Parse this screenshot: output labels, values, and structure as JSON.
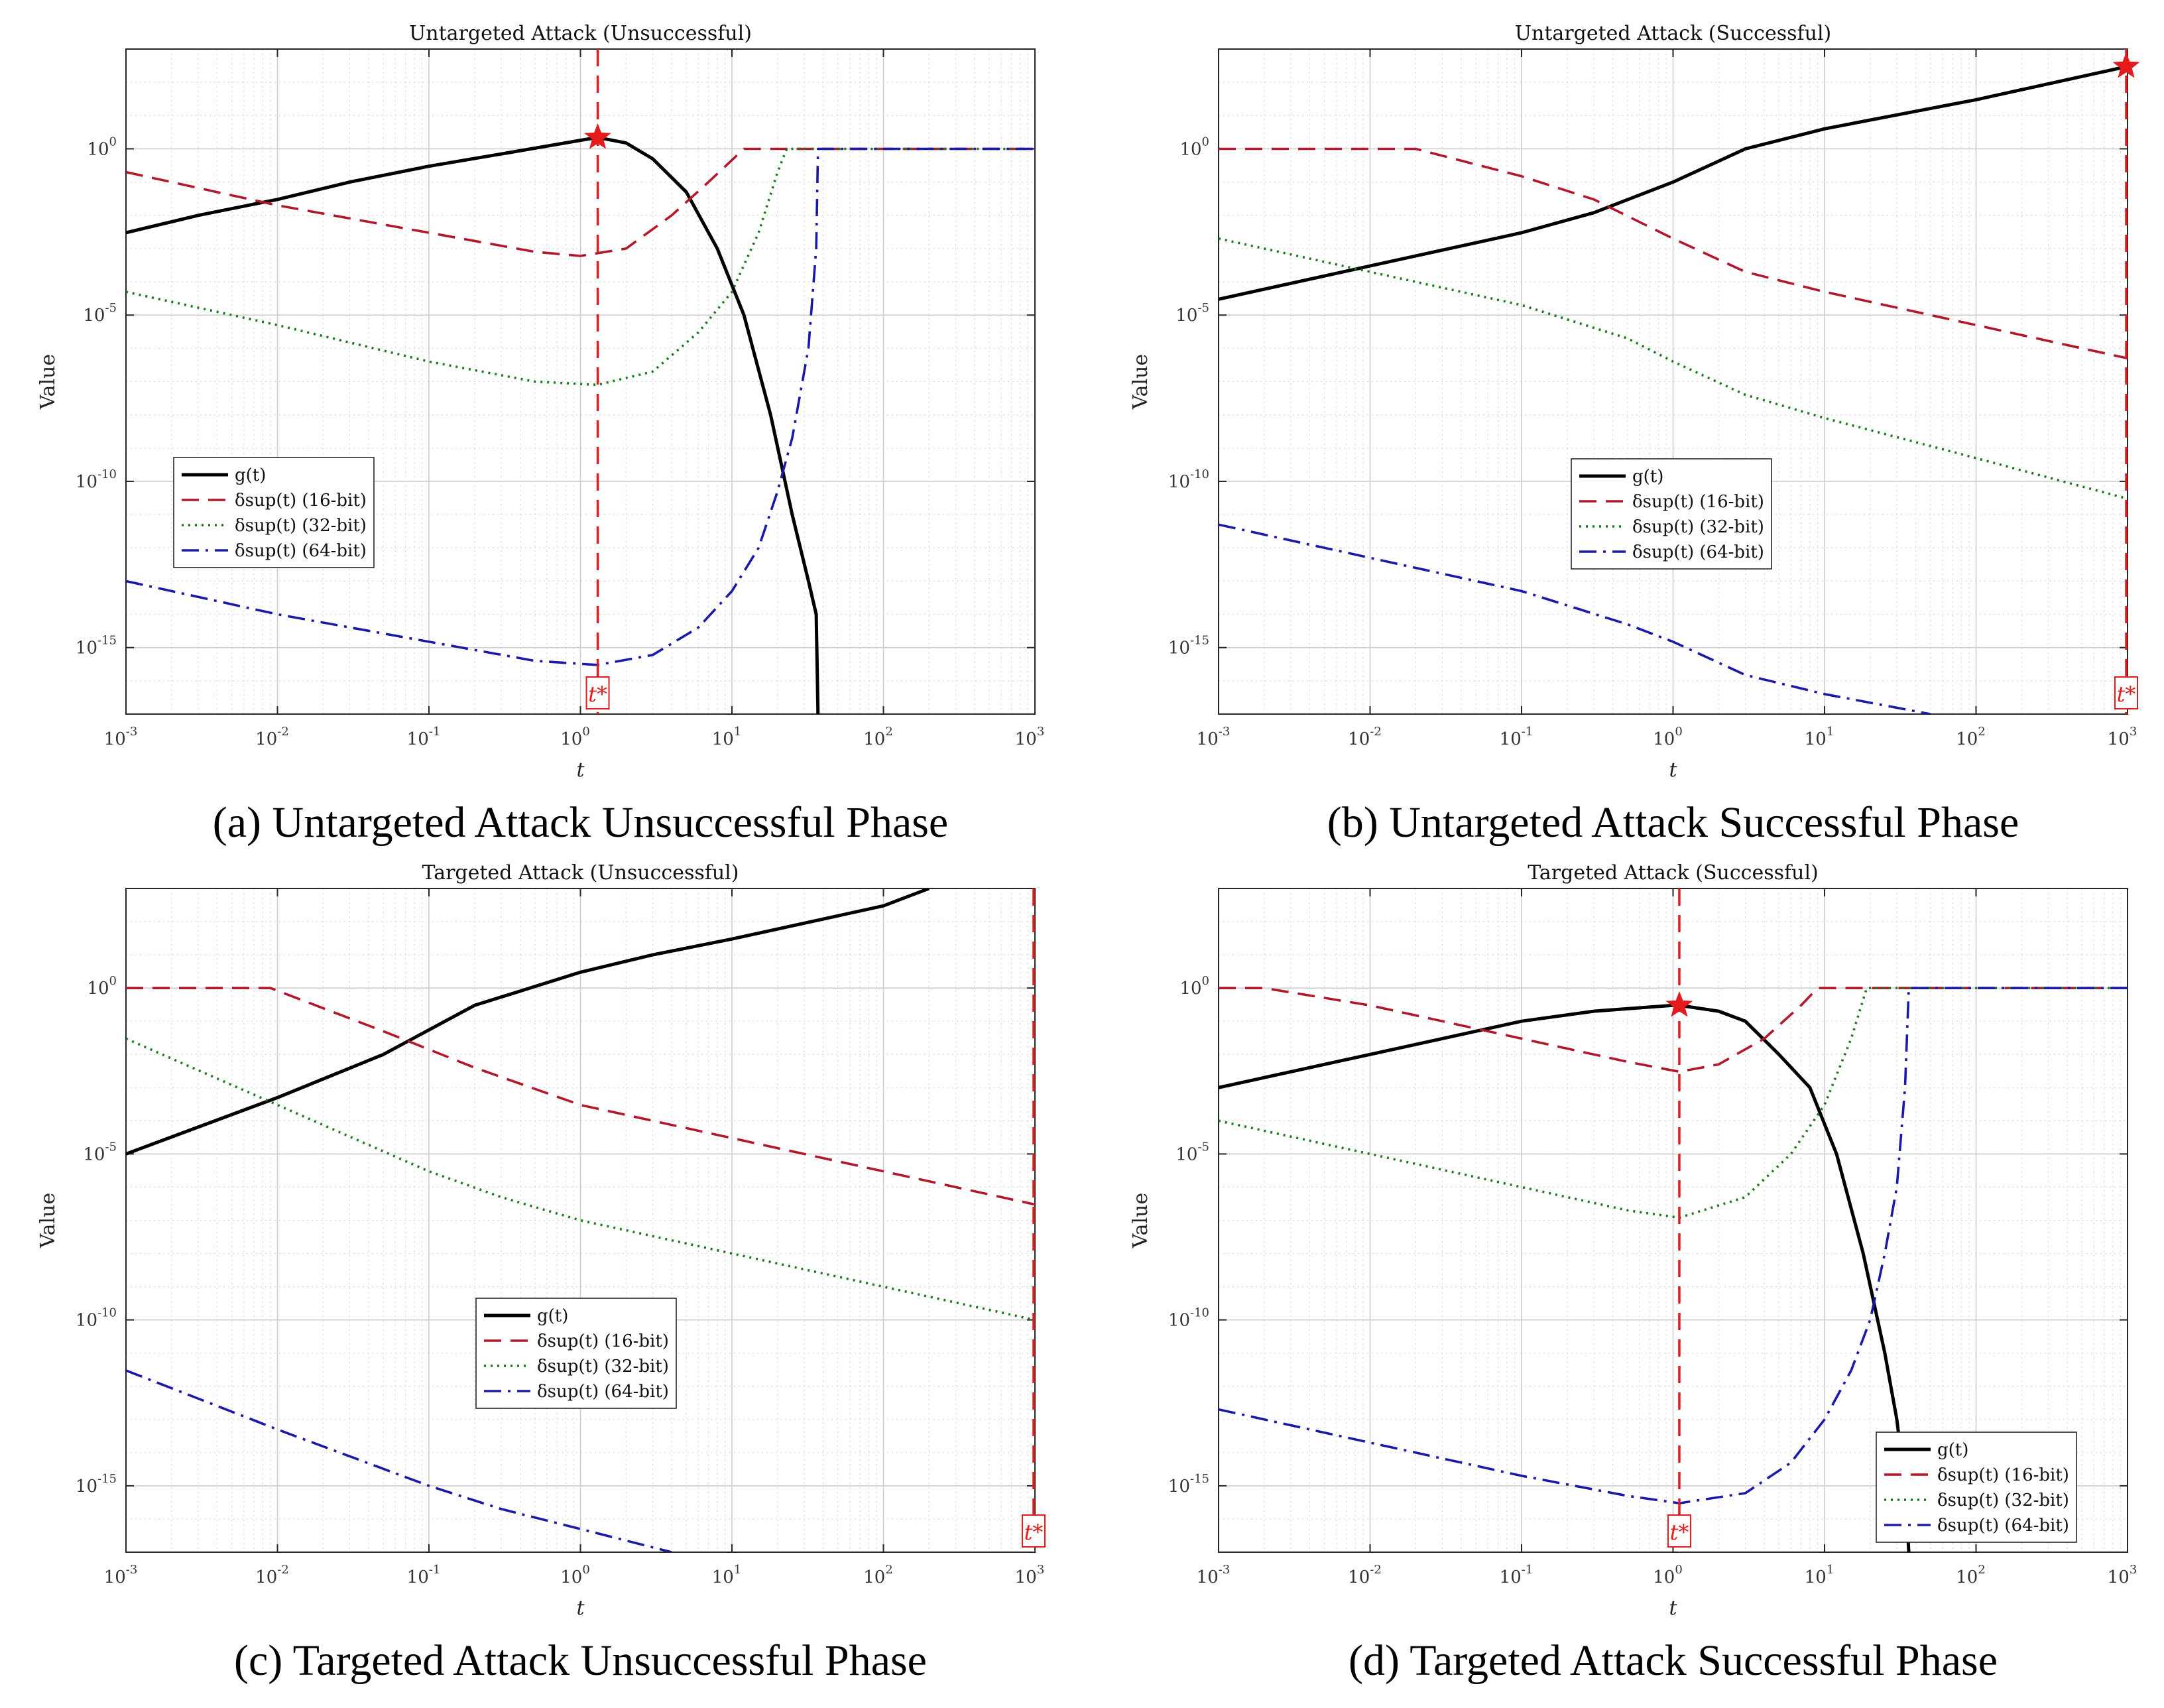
{
  "x_ticks": [
    "10",
    "10",
    "10",
    "10",
    "10",
    "10",
    "10"
  ],
  "x_tick_exponents": [
    "-3",
    "-2",
    "-1",
    "0",
    "1",
    "2",
    "3"
  ],
  "y_ticks": [
    "10",
    "10",
    "10",
    "10"
  ],
  "y_tick_exponents": [
    "0",
    "-5",
    "-10",
    "-15"
  ],
  "legend": {
    "g": "g(t)",
    "d16": "δsup(t) (16-bit)",
    "d32": "δsup(t) (32-bit)",
    "d64": "δsup(t) (64-bit)"
  },
  "tstar_label": "t*",
  "colors": {
    "g": "#000000",
    "d16": "#b2182b",
    "d32": "#1a7a1a",
    "d64": "#1a1aa8",
    "tstar": "#e41a1c"
  },
  "chart_data": [
    {
      "type": "line",
      "title": "Untargeted Attack (Unsuccessful)",
      "caption": "(a) Untargeted Attack Unsuccessful Phase",
      "xlabel": "t",
      "ylabel": "Value",
      "xscale": "log",
      "yscale": "log",
      "xlim": [
        0.001,
        1000
      ],
      "ylim": [
        1e-17,
        1000.0
      ],
      "grid": true,
      "legend_position": "center-left",
      "t_star": 1.3,
      "peak_marker": {
        "x": 1.3,
        "y": 2.2
      },
      "series": [
        {
          "name": "g(t)",
          "x": [
            0.001,
            0.003,
            0.01,
            0.03,
            0.1,
            0.3,
            1,
            1.3,
            2,
            3,
            5,
            8,
            12,
            18,
            25,
            32,
            36,
            37
          ],
          "y": [
            0.003,
            0.01,
            0.03,
            0.1,
            0.3,
            0.7,
            1.8,
            2.2,
            1.5,
            0.5,
            0.05,
            0.001,
            1e-05,
            1e-08,
            1e-11,
            1e-13,
            1e-14,
            1e-17
          ]
        },
        {
          "name": "δsup(t) (16-bit)",
          "x": [
            0.001,
            0.01,
            0.1,
            0.5,
            1,
            2,
            4,
            7,
            12,
            1000
          ],
          "y": [
            0.2,
            0.02,
            0.003,
            0.0008,
            0.0006,
            0.001,
            0.01,
            0.1,
            1,
            1
          ]
        },
        {
          "name": "δsup(t) (32-bit)",
          "x": [
            0.001,
            0.01,
            0.1,
            0.5,
            1.3,
            3,
            6,
            10,
            15,
            20,
            23,
            1000
          ],
          "y": [
            5e-05,
            5e-06,
            4e-07,
            1e-07,
            8e-08,
            2e-07,
            3e-06,
            5e-05,
            0.003,
            0.2,
            1,
            1
          ]
        },
        {
          "name": "δsup(t) (64-bit)",
          "x": [
            0.001,
            0.01,
            0.1,
            0.5,
            1.3,
            3,
            6,
            10,
            15,
            20,
            25,
            32,
            36,
            37,
            1000
          ],
          "y": [
            1e-13,
            1e-14,
            1.5e-15,
            4e-16,
            3e-16,
            6e-16,
            4e-15,
            5e-14,
            1e-12,
            5e-11,
            2e-09,
            1e-06,
            0.001,
            1,
            1
          ]
        }
      ]
    },
    {
      "type": "line",
      "title": "Untargeted Attack (Successful)",
      "caption": "(b) Untargeted Attack Successful Phase",
      "xlabel": "t",
      "ylabel": "Value",
      "xscale": "log",
      "yscale": "log",
      "xlim": [
        0.001,
        1000
      ],
      "ylim": [
        1e-17,
        1000.0
      ],
      "grid": true,
      "legend_position": "center",
      "t_star": 1000,
      "peak_marker": {
        "x": 1000,
        "y": 300
      },
      "series": [
        {
          "name": "g(t)",
          "x": [
            0.001,
            0.01,
            0.1,
            0.3,
            1,
            3,
            10,
            100,
            1000
          ],
          "y": [
            3e-05,
            0.0003,
            0.003,
            0.012,
            0.1,
            1,
            4,
            30,
            300
          ]
        },
        {
          "name": "δsup(t) (16-bit)",
          "x": [
            0.001,
            0.02,
            0.1,
            0.3,
            1,
            3,
            10,
            100,
            1000
          ],
          "y": [
            1,
            1,
            0.15,
            0.03,
            0.002,
            0.0002,
            5e-05,
            5e-06,
            5e-07
          ]
        },
        {
          "name": "δsup(t) (32-bit)",
          "x": [
            0.001,
            0.01,
            0.1,
            0.5,
            1,
            3,
            10,
            100,
            1000
          ],
          "y": [
            0.002,
            0.0002,
            2e-05,
            2e-06,
            4e-07,
            4e-08,
            8e-09,
            5e-10,
            3e-11
          ]
        },
        {
          "name": "δsup(t) (64-bit)",
          "x": [
            0.001,
            0.01,
            0.1,
            0.5,
            1,
            3,
            10,
            50
          ],
          "y": [
            5e-12,
            5e-13,
            5e-14,
            5e-15,
            1.5e-15,
            1.5e-16,
            4e-17,
            1e-17
          ]
        }
      ]
    },
    {
      "type": "line",
      "title": "Targeted Attack (Unsuccessful)",
      "caption": "(c) Targeted Attack Unsuccessful Phase",
      "xlabel": "t",
      "ylabel": "Value",
      "xscale": "log",
      "yscale": "log",
      "xlim": [
        0.001,
        1000
      ],
      "ylim": [
        1e-17,
        1000.0
      ],
      "grid": true,
      "legend_position": "center",
      "t_star": 1000,
      "peak_marker": null,
      "series": [
        {
          "name": "g(t)",
          "x": [
            0.001,
            0.01,
            0.05,
            0.2,
            1,
            3,
            10,
            100,
            200
          ],
          "y": [
            1e-05,
            0.0005,
            0.01,
            0.3,
            3,
            10,
            30,
            300,
            1000
          ]
        },
        {
          "name": "δsup(t) (16-bit)",
          "x": [
            0.001,
            0.009,
            0.05,
            0.2,
            1,
            3,
            10,
            100,
            1000
          ],
          "y": [
            1,
            1,
            0.05,
            0.004,
            0.0003,
            0.0001,
            3e-05,
            3e-06,
            3e-07
          ]
        },
        {
          "name": "δsup(t) (32-bit)",
          "x": [
            0.001,
            0.01,
            0.1,
            0.3,
            1,
            10,
            100,
            1000
          ],
          "y": [
            0.03,
            0.0003,
            3e-06,
            5e-07,
            1e-07,
            1e-08,
            1e-09,
            1e-10
          ]
        },
        {
          "name": "δsup(t) (64-bit)",
          "x": [
            0.001,
            0.01,
            0.1,
            0.3,
            1,
            4
          ],
          "y": [
            3e-12,
            5e-14,
            1e-15,
            2e-16,
            5e-17,
            1e-17
          ]
        }
      ]
    },
    {
      "type": "line",
      "title": "Targeted Attack (Successful)",
      "caption": "(d) Targeted Attack Successful Phase",
      "xlabel": "t",
      "ylabel": "Value",
      "xscale": "log",
      "yscale": "log",
      "xlim": [
        0.001,
        1000
      ],
      "ylim": [
        1e-17,
        1000.0
      ],
      "grid": true,
      "legend_position": "bottom-right",
      "t_star": 1.1,
      "peak_marker": {
        "x": 1.1,
        "y": 0.3
      },
      "series": [
        {
          "name": "g(t)",
          "x": [
            0.001,
            0.003,
            0.01,
            0.03,
            0.1,
            0.3,
            1,
            1.1,
            2,
            3,
            5,
            8,
            12,
            18,
            25,
            30,
            34,
            36
          ],
          "y": [
            0.001,
            0.003,
            0.01,
            0.03,
            0.1,
            0.2,
            0.3,
            0.3,
            0.2,
            0.1,
            0.01,
            0.001,
            1e-05,
            1e-08,
            1e-11,
            1e-13,
            1e-15,
            1e-17
          ]
        },
        {
          "name": "δsup(t) (16-bit)",
          "x": [
            0.001,
            0.002,
            0.01,
            0.1,
            0.5,
            1.1,
            2,
            4,
            7,
            9,
            1000
          ],
          "y": [
            1,
            1,
            0.3,
            0.03,
            0.006,
            0.003,
            0.005,
            0.03,
            0.3,
            1,
            1
          ]
        },
        {
          "name": "δsup(t) (32-bit)",
          "x": [
            0.001,
            0.01,
            0.1,
            0.5,
            1.1,
            3,
            6,
            10,
            15,
            19,
            1000
          ],
          "y": [
            0.0001,
            1e-05,
            1e-06,
            2e-07,
            1.2e-07,
            5e-07,
            1e-05,
            0.0003,
            0.03,
            1,
            1
          ]
        },
        {
          "name": "δsup(t) (64-bit)",
          "x": [
            0.001,
            0.01,
            0.1,
            0.5,
            1.1,
            3,
            6,
            10,
            15,
            20,
            25,
            30,
            34,
            36,
            1000
          ],
          "y": [
            2e-13,
            2e-14,
            2e-15,
            5e-16,
            3e-16,
            6e-16,
            5e-15,
            1e-13,
            3e-12,
            1e-10,
            1e-08,
            1e-06,
            0.001,
            1,
            1
          ]
        }
      ]
    }
  ]
}
